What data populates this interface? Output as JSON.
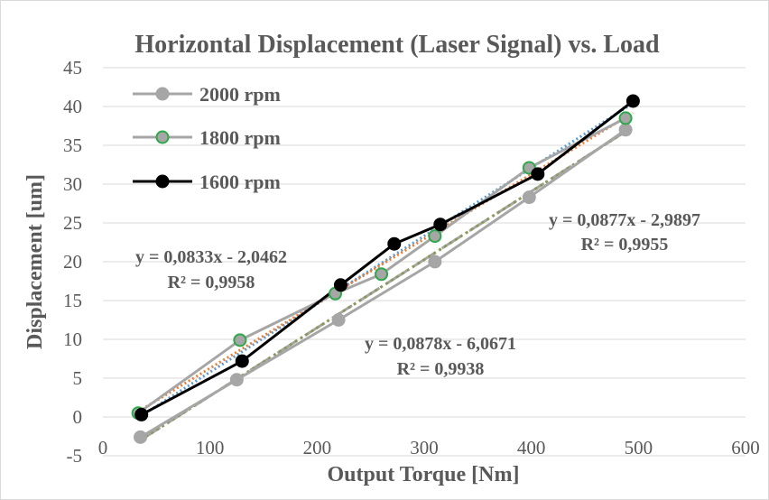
{
  "chart_data": {
    "type": "line",
    "title": "Horizontal  Displacement (Laser Signal) vs. Load",
    "xlabel": "Output  Torque   [Nm]",
    "ylabel": "Displacement  [um]",
    "xlim": [
      0,
      600
    ],
    "ylim": [
      -5,
      45
    ],
    "xticks": [
      0,
      100,
      200,
      300,
      400,
      500,
      600
    ],
    "yticks": [
      -5,
      0,
      5,
      10,
      15,
      20,
      25,
      30,
      35,
      40,
      45
    ],
    "grid": "horizontal",
    "legend_position": "top-left",
    "series": [
      {
        "name": "2000 rpm",
        "color": "#a6a6a6",
        "marker": "filled-circle",
        "marker_fill": "#a6a6a6",
        "marker_stroke": "#a6a6a6",
        "x": [
          35,
          125,
          220,
          310,
          398,
          488
        ],
        "y": [
          -2.6,
          4.8,
          12.5,
          20.0,
          28.3,
          37.0
        ]
      },
      {
        "name": "1800 rpm",
        "color": "#a6a6a6",
        "marker": "hollow-circle",
        "marker_fill": "#a6a6a6",
        "marker_stroke": "#2ea84a",
        "x": [
          33,
          128,
          217,
          260,
          310,
          398,
          488
        ],
        "y": [
          0.5,
          9.9,
          15.9,
          18.4,
          23.3,
          32.1,
          38.5
        ]
      },
      {
        "name": "1600 rpm",
        "color": "#000000",
        "marker": "filled-circle",
        "marker_fill": "#000000",
        "marker_stroke": "#000000",
        "x": [
          36,
          130,
          222,
          272,
          315,
          406,
          495
        ],
        "y": [
          0.3,
          7.2,
          17.0,
          22.3,
          24.8,
          31.3,
          40.7
        ]
      }
    ],
    "trendlines": [
      {
        "color": "#5b9bd5",
        "dash": "2,3",
        "slope": 0.0877,
        "intercept": -2.9897,
        "x_range": [
          33,
          495
        ]
      },
      {
        "color": "#ed7d31",
        "dash": "2,3",
        "slope": 0.0833,
        "intercept": -2.0462,
        "x_range": [
          33,
          495
        ]
      },
      {
        "color": "#a5a5a5",
        "dash": "26,10",
        "slope": 0.0878,
        "intercept": -6.0671,
        "x_range": [
          35,
          488
        ]
      },
      {
        "color": "#8a9a5b",
        "dash": "3,4",
        "slope": 0.0878,
        "intercept": -6.0671,
        "x_range": [
          35,
          488
        ]
      }
    ],
    "annotations": [
      {
        "line1": "y = 0,0833x - 2,0462",
        "line2": "R² = 0,9958",
        "near": "left"
      },
      {
        "line1": "y = 0,0878x - 6,0671",
        "line2": "R² = 0,9938",
        "near": "center"
      },
      {
        "line1": "y = 0,0877x - 2,9897",
        "line2": "R² = 0,9955",
        "near": "right"
      }
    ]
  }
}
